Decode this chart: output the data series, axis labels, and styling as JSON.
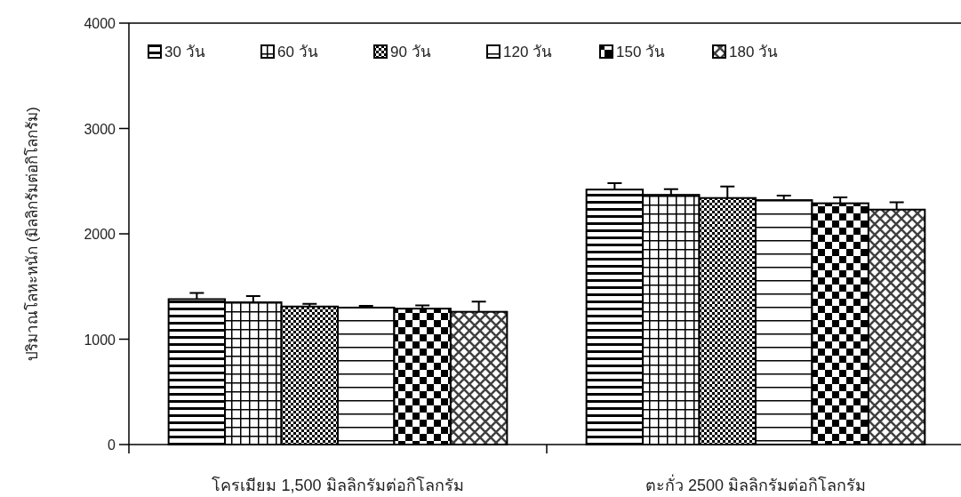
{
  "chart_data": {
    "type": "bar",
    "ylabel": "ปริมาณโลหะหนัก (มิลลิกรัมต่อกิโลกรัม)",
    "categories": [
      "โครเมียม 1,500 มิลลิกรัมต่อกิโลกรัม",
      "ตะกั่ว 2500 มิลลิกรัมต่อกิโลกรัม"
    ],
    "series": [
      {
        "name": "30 วัน",
        "color": "#000000",
        "values": [
          1380,
          2420
        ],
        "errors": [
          59,
          60
        ]
      },
      {
        "name": "60 วัน",
        "color": "#000000",
        "values": [
          1350,
          2370
        ],
        "errors": [
          59,
          55
        ]
      },
      {
        "name": "90 วัน",
        "color": "#000000",
        "values": [
          1310,
          2340
        ],
        "errors": [
          26,
          110
        ]
      },
      {
        "name": "120 วัน",
        "color": "#000000",
        "values": [
          1300,
          2320
        ],
        "errors": [
          17,
          42
        ]
      },
      {
        "name": "150 วัน",
        "color": "#000000",
        "values": [
          1290,
          2290
        ],
        "errors": [
          30,
          56
        ]
      },
      {
        "name": "180 วัน",
        "color": "#000000",
        "values": [
          1260,
          2230
        ],
        "errors": [
          96,
          70
        ]
      }
    ],
    "ylim": [
      0,
      4000
    ],
    "yticks": [
      0,
      1000,
      2000,
      3000,
      4000
    ],
    "grid": false,
    "legend": "top"
  }
}
